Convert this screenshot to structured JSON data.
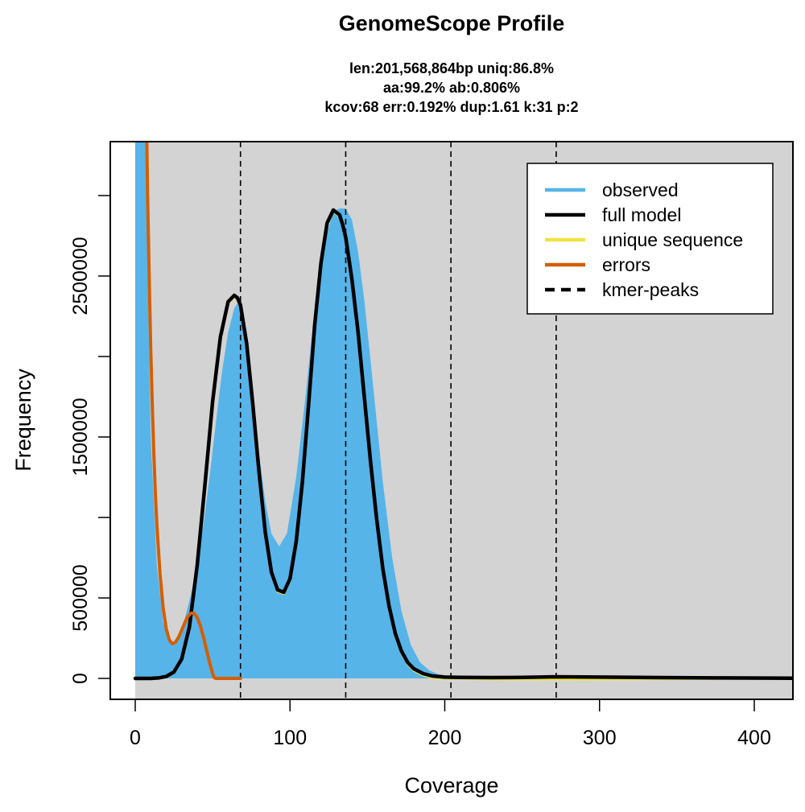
{
  "chart_data": {
    "type": "area",
    "title": "GenomeScope Profile",
    "subtitle_lines": [
      "len:201,568,864bp uniq:86.8%",
      "aa:99.2% ab:0.806%",
      "kcov:68 err:0.192%  dup:1.61  k:31 p:2"
    ],
    "xlabel": "Coverage",
    "ylabel": "Frequency",
    "xlim": [
      -16,
      425
    ],
    "ylim": [
      -130000,
      3330000
    ],
    "x_ticks": [
      0,
      100,
      200,
      300,
      400
    ],
    "x_tick_labels": [
      "0",
      "100",
      "200",
      "300",
      "400"
    ],
    "y_ticks": [
      0,
      500000,
      1000000,
      1500000,
      2000000,
      2500000,
      3000000
    ],
    "y_tick_labels": [
      "0",
      "500000",
      "",
      "1500000",
      "",
      "2500000",
      ""
    ],
    "kmer_peaks": [
      68,
      136,
      204,
      272
    ],
    "legend": {
      "position": "topright",
      "entries": [
        {
          "label": "observed",
          "color": "#56B4E9",
          "style": "solid"
        },
        {
          "label": "full model",
          "color": "#000000",
          "style": "solid"
        },
        {
          "label": "unique sequence",
          "color": "#F0E442",
          "style": "solid"
        },
        {
          "label": "errors",
          "color": "#D55E00",
          "style": "solid"
        },
        {
          "label": "kmer-peaks",
          "color": "#000000",
          "style": "dashed"
        }
      ]
    },
    "series": [
      {
        "name": "observed",
        "color": "#56B4E9",
        "x": [
          0,
          2,
          4,
          6,
          8,
          10,
          14,
          18,
          22,
          24,
          28,
          32,
          36,
          40,
          44,
          48,
          52,
          56,
          60,
          64,
          66,
          68,
          72,
          76,
          80,
          84,
          88,
          93,
          98,
          104,
          110,
          116,
          122,
          128,
          132,
          136,
          140,
          144,
          148,
          152,
          156,
          160,
          166,
          172,
          178,
          184,
          190,
          196,
          202,
          210,
          220,
          240,
          260,
          280,
          300,
          340,
          380,
          425
        ],
        "y": [
          34000000,
          20000000,
          9000000,
          4500000,
          2500000,
          1500000,
          700000,
          350000,
          230000,
          215000,
          260000,
          370000,
          520000,
          700000,
          950000,
          1250000,
          1580000,
          1900000,
          2150000,
          2300000,
          2330000,
          2300000,
          2100000,
          1750000,
          1400000,
          1100000,
          900000,
          820000,
          900000,
          1250000,
          1750000,
          2300000,
          2700000,
          2900000,
          2920000,
          2920000,
          2850000,
          2650000,
          2350000,
          1980000,
          1600000,
          1220000,
          750000,
          420000,
          210000,
          100000,
          50000,
          25000,
          15000,
          10000,
          9000,
          9000,
          10000,
          9000,
          8000,
          5000,
          2000,
          1000
        ]
      },
      {
        "name": "full model",
        "color": "#000000",
        "x": [
          0,
          10,
          15,
          20,
          25,
          30,
          35,
          40,
          45,
          50,
          55,
          60,
          64,
          66,
          68,
          72,
          76,
          80,
          84,
          88,
          92,
          96,
          100,
          104,
          108,
          112,
          116,
          120,
          124,
          128,
          132,
          134,
          136,
          140,
          144,
          148,
          152,
          156,
          160,
          164,
          168,
          172,
          176,
          180,
          186,
          192,
          200,
          210,
          230,
          250,
          272,
          300,
          340,
          380,
          425
        ],
        "y": [
          0,
          0,
          3000,
          12000,
          40000,
          120000,
          320000,
          700000,
          1200000,
          1720000,
          2120000,
          2340000,
          2380000,
          2365000,
          2320000,
          2080000,
          1700000,
          1280000,
          910000,
          660000,
          550000,
          535000,
          620000,
          850000,
          1220000,
          1700000,
          2200000,
          2580000,
          2830000,
          2910000,
          2880000,
          2820000,
          2740000,
          2480000,
          2150000,
          1750000,
          1350000,
          990000,
          680000,
          450000,
          280000,
          170000,
          100000,
          60000,
          30000,
          15000,
          8000,
          6000,
          5000,
          6000,
          10000,
          8000,
          5000,
          3000,
          1500
        ]
      },
      {
        "name": "unique sequence",
        "color": "#F0E442",
        "x": [
          0,
          10,
          15,
          20,
          25,
          30,
          35,
          40,
          45,
          50,
          55,
          60,
          64,
          66,
          68,
          72,
          76,
          80,
          84,
          88,
          92,
          96,
          100,
          104,
          108,
          112,
          116,
          120,
          124,
          128,
          132,
          134,
          136,
          140,
          144,
          148,
          152,
          156,
          160,
          164,
          168,
          172,
          176,
          180,
          186,
          192,
          200,
          210,
          230,
          250,
          272,
          300,
          340,
          380,
          425
        ],
        "y": [
          0,
          0,
          3000,
          12000,
          40000,
          120000,
          320000,
          700000,
          1200000,
          1720000,
          2120000,
          2330000,
          2370000,
          2355000,
          2310000,
          2070000,
          1690000,
          1270000,
          900000,
          650000,
          540000,
          525000,
          610000,
          840000,
          1210000,
          1690000,
          2190000,
          2570000,
          2820000,
          2900000,
          2870000,
          2810000,
          2730000,
          2470000,
          2140000,
          1740000,
          1340000,
          980000,
          670000,
          440000,
          270000,
          160000,
          90000,
          50000,
          20000,
          5000,
          0,
          0,
          -5000,
          -5000,
          -5000,
          -5000,
          -3000,
          -1000,
          0
        ]
      },
      {
        "name": "errors",
        "color": "#D55E00",
        "x": [
          7.5,
          8,
          9,
          10,
          11,
          12,
          13,
          14,
          16,
          18,
          20,
          22,
          24,
          26,
          28,
          30,
          32,
          34,
          36,
          38,
          40,
          42,
          44,
          46,
          48,
          50,
          51,
          52,
          56,
          60,
          64,
          68
        ],
        "y": [
          3330000,
          3000000,
          2500000,
          2050000,
          1700000,
          1400000,
          1150000,
          950000,
          650000,
          440000,
          310000,
          240000,
          215000,
          225000,
          255000,
          300000,
          345000,
          385000,
          405000,
          405000,
          380000,
          330000,
          260000,
          180000,
          100000,
          30000,
          5000,
          0,
          0,
          0,
          0,
          0
        ]
      }
    ]
  }
}
